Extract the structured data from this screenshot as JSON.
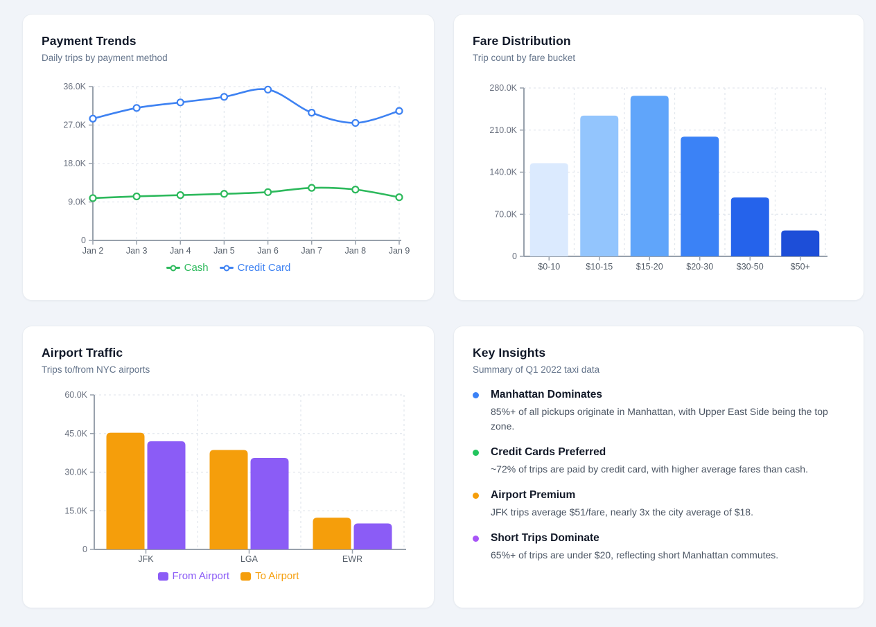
{
  "payment_trends": {
    "title": "Payment Trends",
    "subtitle": "Daily trips by payment method"
  },
  "fare_distribution": {
    "title": "Fare Distribution",
    "subtitle": "Trip count by fare bucket"
  },
  "airport_traffic": {
    "title": "Airport Traffic",
    "subtitle": "Trips to/from NYC airports"
  },
  "key_insights": {
    "title": "Key Insights",
    "subtitle": "Summary of Q1 2022 taxi data",
    "items": [
      {
        "dot_color": "#3b82f6",
        "title": "Manhattan Dominates",
        "text": "85%+ of all pickups originate in Manhattan, with Upper East Side being the top zone."
      },
      {
        "dot_color": "#22c55e",
        "title": "Credit Cards Preferred",
        "text": "~72% of trips are paid by credit card, with higher average fares than cash."
      },
      {
        "dot_color": "#f59e0b",
        "title": "Airport Premium",
        "text": "JFK trips average $51/fare, nearly 3x the city average of $18."
      },
      {
        "dot_color": "#a855f7",
        "title": "Short Trips Dominate",
        "text": "65%+ of trips are under $20, reflecting short Manhattan commutes."
      }
    ]
  },
  "chart_data": [
    {
      "type": "line",
      "title": "Payment Trends",
      "x": [
        "Jan 2",
        "Jan 3",
        "Jan 4",
        "Jan 5",
        "Jan 6",
        "Jan 7",
        "Jan 8",
        "Jan 9"
      ],
      "series": [
        {
          "name": "Cash",
          "color": "#2db95c",
          "values": [
            9900,
            10300,
            10600,
            10900,
            11300,
            12300,
            11900,
            10100
          ]
        },
        {
          "name": "Credit Card",
          "color": "#3e82f2",
          "values": [
            28500,
            31000,
            32300,
            33600,
            35300,
            29900,
            27500,
            30300
          ]
        }
      ],
      "ylim": [
        0,
        36000
      ],
      "yticks": [
        0,
        9000,
        18000,
        27000,
        36000
      ],
      "ytick_labels": [
        "0",
        "9.0K",
        "18.0K",
        "27.0K",
        "36.0K"
      ],
      "legend_position": "bottom",
      "grid": true
    },
    {
      "type": "bar",
      "title": "Fare Distribution",
      "categories": [
        "$0-10",
        "$10-15",
        "$15-20",
        "$20-30",
        "$30-50",
        "$50+"
      ],
      "values": [
        155000,
        234000,
        267000,
        199000,
        98000,
        43000
      ],
      "colors": [
        "#dbeafe",
        "#93c5fd",
        "#60a5fa",
        "#3b82f6",
        "#2563eb",
        "#1d4ed8"
      ],
      "ylim": [
        0,
        280000
      ],
      "yticks": [
        0,
        70000,
        140000,
        210000,
        280000
      ],
      "ytick_labels": [
        "0",
        "70.0K",
        "140.0K",
        "210.0K",
        "280.0K"
      ],
      "grid": true
    },
    {
      "type": "grouped_bar",
      "title": "Airport Traffic",
      "categories": [
        "JFK",
        "LGA",
        "EWR"
      ],
      "series": [
        {
          "name": "From Airport",
          "color": "#8b5cf6",
          "values": [
            42000,
            35500,
            10100
          ]
        },
        {
          "name": "To Airport",
          "color": "#f59e0b",
          "values": [
            45300,
            38600,
            12300
          ]
        }
      ],
      "draw_indices": [
        1,
        0
      ],
      "ylim": [
        0,
        60000
      ],
      "yticks": [
        0,
        15000,
        30000,
        45000,
        60000
      ],
      "ytick_labels": [
        "0",
        "15.0K",
        "30.0K",
        "45.0K",
        "60.0K"
      ],
      "legend_position": "bottom",
      "grid": true
    }
  ]
}
